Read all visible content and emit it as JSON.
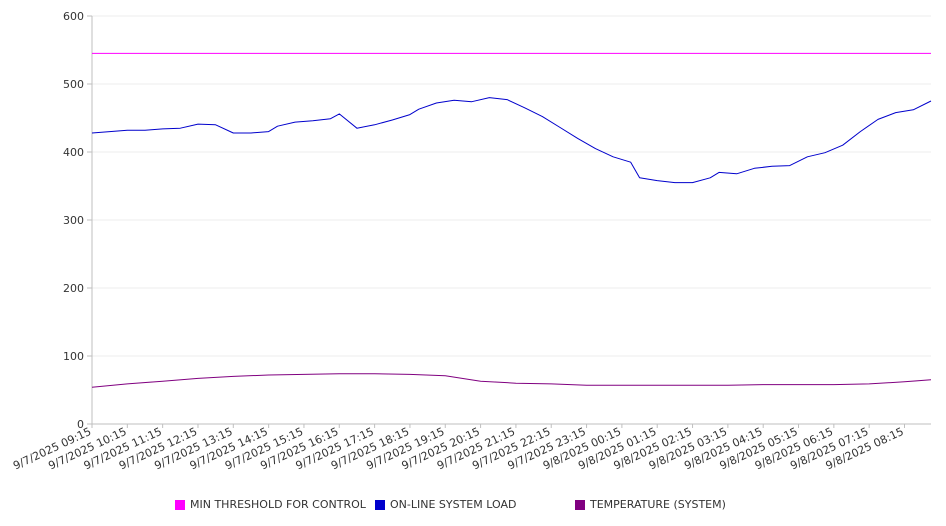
{
  "chart_data": {
    "type": "line",
    "title": "",
    "xlabel": "",
    "ylabel": "",
    "ylim": [
      0,
      600
    ],
    "y_ticks": [
      "0",
      "100",
      "200",
      "300",
      "400",
      "500",
      "600"
    ],
    "grid": true,
    "legend_position": "bottom",
    "x_start": "9/7/2025 09:15",
    "x_end": "9/8/2025 09:00",
    "x_tick_labels": [
      "9/7/2025 09:15",
      "9/7/2025 10:15",
      "9/7/2025 11:15",
      "9/7/2025 12:15",
      "9/7/2025 13:15",
      "9/7/2025 14:15",
      "9/7/2025 15:15",
      "9/7/2025 16:15",
      "9/7/2025 17:15",
      "9/7/2025 18:15",
      "9/7/2025 19:15",
      "9/7/2025 20:15",
      "9/7/2025 21:15",
      "9/7/2025 22:15",
      "9/7/2025 23:15",
      "9/8/2025 00:15",
      "9/8/2025 01:15",
      "9/8/2025 02:15",
      "9/8/2025 03:15",
      "9/8/2025 04:15",
      "9/8/2025 05:15",
      "9/8/2025 06:15",
      "9/8/2025 07:15",
      "9/8/2025 08:15"
    ],
    "series": [
      {
        "name": "MIN THRESHOLD FOR CONTROL",
        "color": "#ff00ff",
        "points": [
          [
            "9/7/2025 09:15",
            545
          ],
          [
            "9/8/2025 09:00",
            545
          ]
        ]
      },
      {
        "name": "ON-LINE SYSTEM LOAD",
        "color": "#0000cc",
        "points": [
          [
            "9/7/2025 09:15",
            428
          ],
          [
            "9/7/2025 09:45",
            430
          ],
          [
            "9/7/2025 10:15",
            432
          ],
          [
            "9/7/2025 10:45",
            432
          ],
          [
            "9/7/2025 11:15",
            434
          ],
          [
            "9/7/2025 11:45",
            435
          ],
          [
            "9/7/2025 12:15",
            441
          ],
          [
            "9/7/2025 12:45",
            440
          ],
          [
            "9/7/2025 13:15",
            428
          ],
          [
            "9/7/2025 13:45",
            428
          ],
          [
            "9/7/2025 14:15",
            430
          ],
          [
            "9/7/2025 14:30",
            438
          ],
          [
            "9/7/2025 15:00",
            444
          ],
          [
            "9/7/2025 15:30",
            446
          ],
          [
            "9/7/2025 16:00",
            449
          ],
          [
            "9/7/2025 16:15",
            456
          ],
          [
            "9/7/2025 16:45",
            435
          ],
          [
            "9/7/2025 17:15",
            440
          ],
          [
            "9/7/2025 17:45",
            447
          ],
          [
            "9/7/2025 18:15",
            455
          ],
          [
            "9/7/2025 18:30",
            463
          ],
          [
            "9/7/2025 19:00",
            472
          ],
          [
            "9/7/2025 19:30",
            476
          ],
          [
            "9/7/2025 20:00",
            474
          ],
          [
            "9/7/2025 20:30",
            480
          ],
          [
            "9/7/2025 21:00",
            477
          ],
          [
            "9/7/2025 21:30",
            465
          ],
          [
            "9/7/2025 22:00",
            452
          ],
          [
            "9/7/2025 22:30",
            436
          ],
          [
            "9/7/2025 23:00",
            420
          ],
          [
            "9/7/2025 23:30",
            405
          ],
          [
            "9/8/2025 00:00",
            393
          ],
          [
            "9/8/2025 00:30",
            385
          ],
          [
            "9/8/2025 00:45",
            362
          ],
          [
            "9/8/2025 01:15",
            358
          ],
          [
            "9/8/2025 01:45",
            355
          ],
          [
            "9/8/2025 02:15",
            355
          ],
          [
            "9/8/2025 02:45",
            362
          ],
          [
            "9/8/2025 03:00",
            370
          ],
          [
            "9/8/2025 03:30",
            368
          ],
          [
            "9/8/2025 04:00",
            376
          ],
          [
            "9/8/2025 04:30",
            379
          ],
          [
            "9/8/2025 05:00",
            380
          ],
          [
            "9/8/2025 05:30",
            393
          ],
          [
            "9/8/2025 06:00",
            399
          ],
          [
            "9/8/2025 06:30",
            410
          ],
          [
            "9/8/2025 07:00",
            430
          ],
          [
            "9/8/2025 07:30",
            448
          ],
          [
            "9/8/2025 08:00",
            458
          ],
          [
            "9/8/2025 08:30",
            462
          ],
          [
            "9/8/2025 09:00",
            475
          ]
        ]
      },
      {
        "name": "TEMPERATURE (SYSTEM)",
        "color": "#800080",
        "points": [
          [
            "9/7/2025 09:15",
            54
          ],
          [
            "9/7/2025 10:15",
            59
          ],
          [
            "9/7/2025 11:15",
            63
          ],
          [
            "9/7/2025 12:15",
            67
          ],
          [
            "9/7/2025 13:15",
            70
          ],
          [
            "9/7/2025 14:15",
            72
          ],
          [
            "9/7/2025 15:15",
            73
          ],
          [
            "9/7/2025 16:15",
            74
          ],
          [
            "9/7/2025 17:15",
            74
          ],
          [
            "9/7/2025 18:15",
            73
          ],
          [
            "9/7/2025 19:15",
            71
          ],
          [
            "9/7/2025 20:15",
            63
          ],
          [
            "9/7/2025 21:15",
            60
          ],
          [
            "9/7/2025 22:15",
            59
          ],
          [
            "9/7/2025 23:15",
            57
          ],
          [
            "9/8/2025 00:15",
            57
          ],
          [
            "9/8/2025 01:15",
            57
          ],
          [
            "9/8/2025 02:15",
            57
          ],
          [
            "9/8/2025 03:15",
            57
          ],
          [
            "9/8/2025 04:15",
            58
          ],
          [
            "9/8/2025 05:15",
            58
          ],
          [
            "9/8/2025 06:15",
            58
          ],
          [
            "9/8/2025 07:15",
            59
          ],
          [
            "9/8/2025 08:15",
            62
          ],
          [
            "9/8/2025 09:00",
            65
          ]
        ]
      }
    ]
  }
}
